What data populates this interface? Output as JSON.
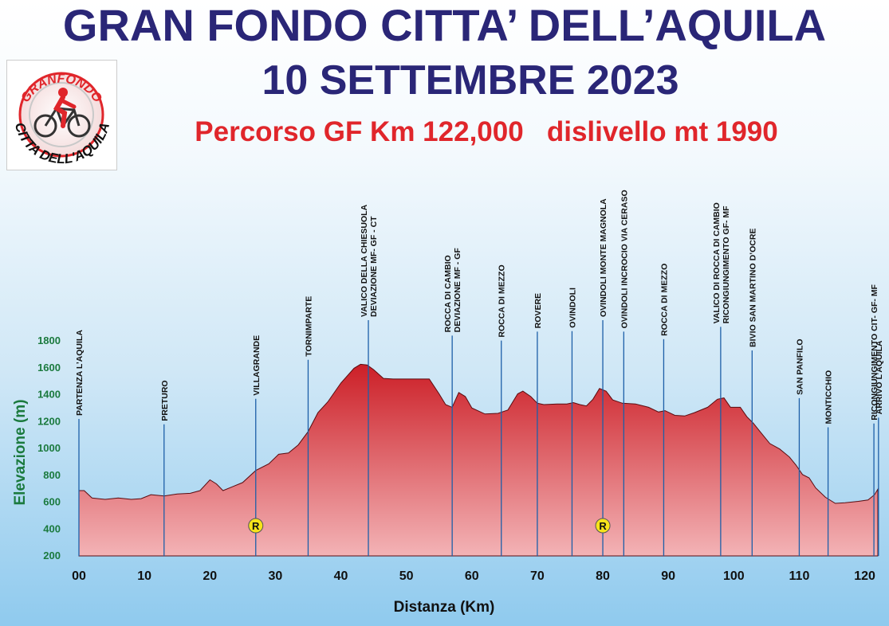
{
  "header": {
    "title_line1": "GRAN FONDO CITTA’ DELL’AQUILA",
    "title_line2": "10 SETTEMBRE 2023",
    "subtitle": "Percorso GF Km 122,000   dislivello mt 1990"
  },
  "logo": {
    "top_text": "GRANFONDO",
    "bottom_text": "CITTA DELL'AQUILA"
  },
  "chart_data": {
    "type": "area",
    "title": "",
    "xlabel": "Distanza (Km)",
    "ylabel": "Elevazione (m)",
    "xlim": [
      0,
      122
    ],
    "ylim": [
      200,
      1900
    ],
    "x_ticks": [
      "00",
      "10",
      "20",
      "30",
      "40",
      "50",
      "60",
      "70",
      "80",
      "90",
      "100",
      "110",
      "120"
    ],
    "y_ticks": [
      "200",
      "400",
      "600",
      "800",
      "1000",
      "1200",
      "1400",
      "1600",
      "1800"
    ],
    "profile": {
      "x": [
        0,
        0.8,
        2,
        4,
        6,
        8,
        9.5,
        11,
        13,
        15,
        17,
        18.5,
        20,
        21,
        22,
        23.5,
        25,
        27,
        29,
        30.5,
        32,
        33.5,
        35,
        36.5,
        38,
        40,
        42,
        43,
        44,
        45,
        46.5,
        48,
        50,
        52,
        53.5,
        55,
        56,
        57,
        58,
        59,
        60,
        62,
        64,
        65.5,
        67,
        67.8,
        69,
        70,
        71,
        73,
        74.5,
        75.5,
        76.5,
        77.5,
        78.5,
        79.5,
        80.5,
        81.5,
        83,
        85,
        87,
        88.5,
        89.5,
        91,
        92.5,
        94,
        96,
        97.5,
        98.5,
        99.5,
        101,
        102,
        103,
        104,
        105.5,
        107,
        108.5,
        109.5,
        110.5,
        111.5,
        112.5,
        114,
        115.5,
        117,
        119,
        120.5,
        121.5,
        122
      ],
      "y": [
        680,
        680,
        625,
        615,
        625,
        615,
        620,
        650,
        640,
        655,
        660,
        680,
        760,
        730,
        680,
        710,
        740,
        830,
        880,
        950,
        960,
        1020,
        1120,
        1260,
        1340,
        1480,
        1590,
        1620,
        1615,
        1580,
        1515,
        1510,
        1510,
        1510,
        1510,
        1400,
        1320,
        1300,
        1410,
        1380,
        1295,
        1250,
        1255,
        1280,
        1400,
        1420,
        1380,
        1330,
        1320,
        1325,
        1325,
        1335,
        1320,
        1310,
        1360,
        1440,
        1420,
        1355,
        1330,
        1325,
        1300,
        1265,
        1275,
        1240,
        1235,
        1260,
        1300,
        1360,
        1370,
        1300,
        1300,
        1230,
        1180,
        1120,
        1030,
        990,
        930,
        870,
        800,
        775,
        700,
        630,
        585,
        590,
        600,
        610,
        650,
        690
      ]
    },
    "waypoints": [
      {
        "km": 0,
        "label": "PARTENZA L’AQUILA"
      },
      {
        "km": 13,
        "label": "PRETURO"
      },
      {
        "km": 27,
        "label": "VILLAGRANDE"
      },
      {
        "km": 35,
        "label": "TORNIMPARTE"
      },
      {
        "km": 44.2,
        "label": "VALICO DELLA CHIESUOLA"
      },
      {
        "km": 44.2,
        "label": "DEVIAZIONE MF- GF - CT"
      },
      {
        "km": 57,
        "label": "ROCCA DI CAMBIO"
      },
      {
        "km": 57,
        "label": "DEVIAZIONE MF - GF"
      },
      {
        "km": 64.5,
        "label": "ROCCA DI MEZZO"
      },
      {
        "km": 70,
        "label": "ROVERE"
      },
      {
        "km": 75.3,
        "label": "OVINDOLI"
      },
      {
        "km": 80,
        "label": "OVINDOLI MONTE MAGNOLA"
      },
      {
        "km": 83.2,
        "label": "OVINDOLI INCROCIO VIA CERASO"
      },
      {
        "km": 89.3,
        "label": "ROCCA DI MEZZO"
      },
      {
        "km": 98,
        "label": "VALICO DI ROCCA DI CAMBIO"
      },
      {
        "km": 98,
        "label": "RICONGIUNGIMENTO GF- MF"
      },
      {
        "km": 102.8,
        "label": "BIVIO SAN MARTINO D’OCRE"
      },
      {
        "km": 110,
        "label": "SAN PANFILO"
      },
      {
        "km": 114.4,
        "label": "MONTICCHIO"
      },
      {
        "km": 121.4,
        "label": "RICONGIUNGIMENTO CIT- GF- MF"
      },
      {
        "km": 122.1,
        "label": "ARRIVO  L’AQUILA"
      }
    ],
    "refreshment_points": [
      {
        "km": 27,
        "label": "R"
      },
      {
        "km": 80,
        "label": "R"
      }
    ],
    "colors": {
      "profile_top": "#cc1f27",
      "profile_bottom": "#f3b3b6",
      "profile_outline": "#5a0b0f",
      "marker_line": "#1d5fa8",
      "refreshment_fill": "#f7e31a",
      "title": "#2a2677",
      "subtitle": "#e0262b",
      "y_axis": "#1b7a3e"
    }
  }
}
